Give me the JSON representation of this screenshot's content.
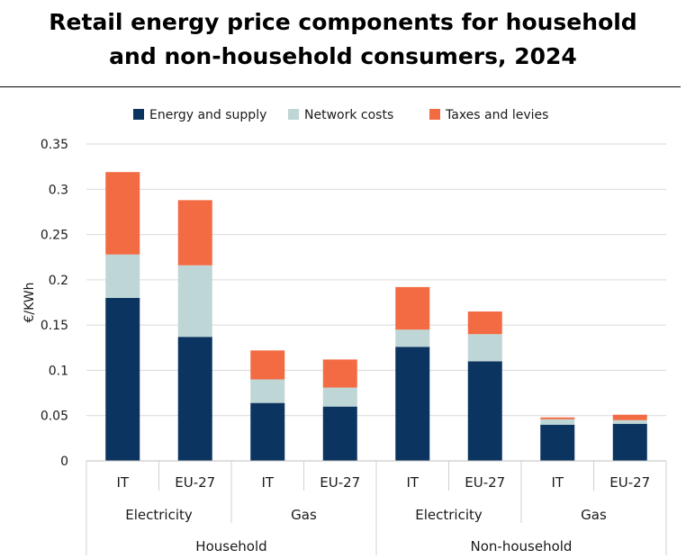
{
  "chart_data": {
    "type": "bar",
    "stacked": true,
    "title_line1": "Retail energy price components for household",
    "title_line2": "and non-household consumers, 2024",
    "ylabel": "€/KWh",
    "ylim": [
      0,
      0.35
    ],
    "yticks": [
      "0",
      "0.05",
      "0.1",
      "0.15",
      "0.2",
      "0.25",
      "0.3",
      "0.35"
    ],
    "grid": true,
    "legend_position": "top",
    "categories": [
      "IT",
      "EU-27",
      "IT",
      "EU-27",
      "IT",
      "EU-27",
      "IT",
      "EU-27"
    ],
    "groups_level1": [
      {
        "label": "Electricity",
        "span": [
          0,
          1
        ]
      },
      {
        "label": "Gas",
        "span": [
          2,
          3
        ]
      },
      {
        "label": "Electricity",
        "span": [
          4,
          5
        ]
      },
      {
        "label": "Gas",
        "span": [
          6,
          7
        ]
      }
    ],
    "groups_level2": [
      {
        "label": "Household",
        "span": [
          0,
          3
        ]
      },
      {
        "label": "Non-household",
        "span": [
          4,
          7
        ]
      }
    ],
    "series": [
      {
        "name": "Energy and supply",
        "color": "#0b3460",
        "values": [
          0.18,
          0.137,
          0.064,
          0.06,
          0.126,
          0.11,
          0.04,
          0.041
        ]
      },
      {
        "name": "Network costs",
        "color": "#bfd6d6",
        "values": [
          0.048,
          0.079,
          0.026,
          0.021,
          0.019,
          0.03,
          0.006,
          0.004
        ]
      },
      {
        "name": "Taxes and levies",
        "color": "#f26b43",
        "values": [
          0.091,
          0.072,
          0.032,
          0.031,
          0.047,
          0.025,
          0.002,
          0.006
        ]
      }
    ]
  }
}
